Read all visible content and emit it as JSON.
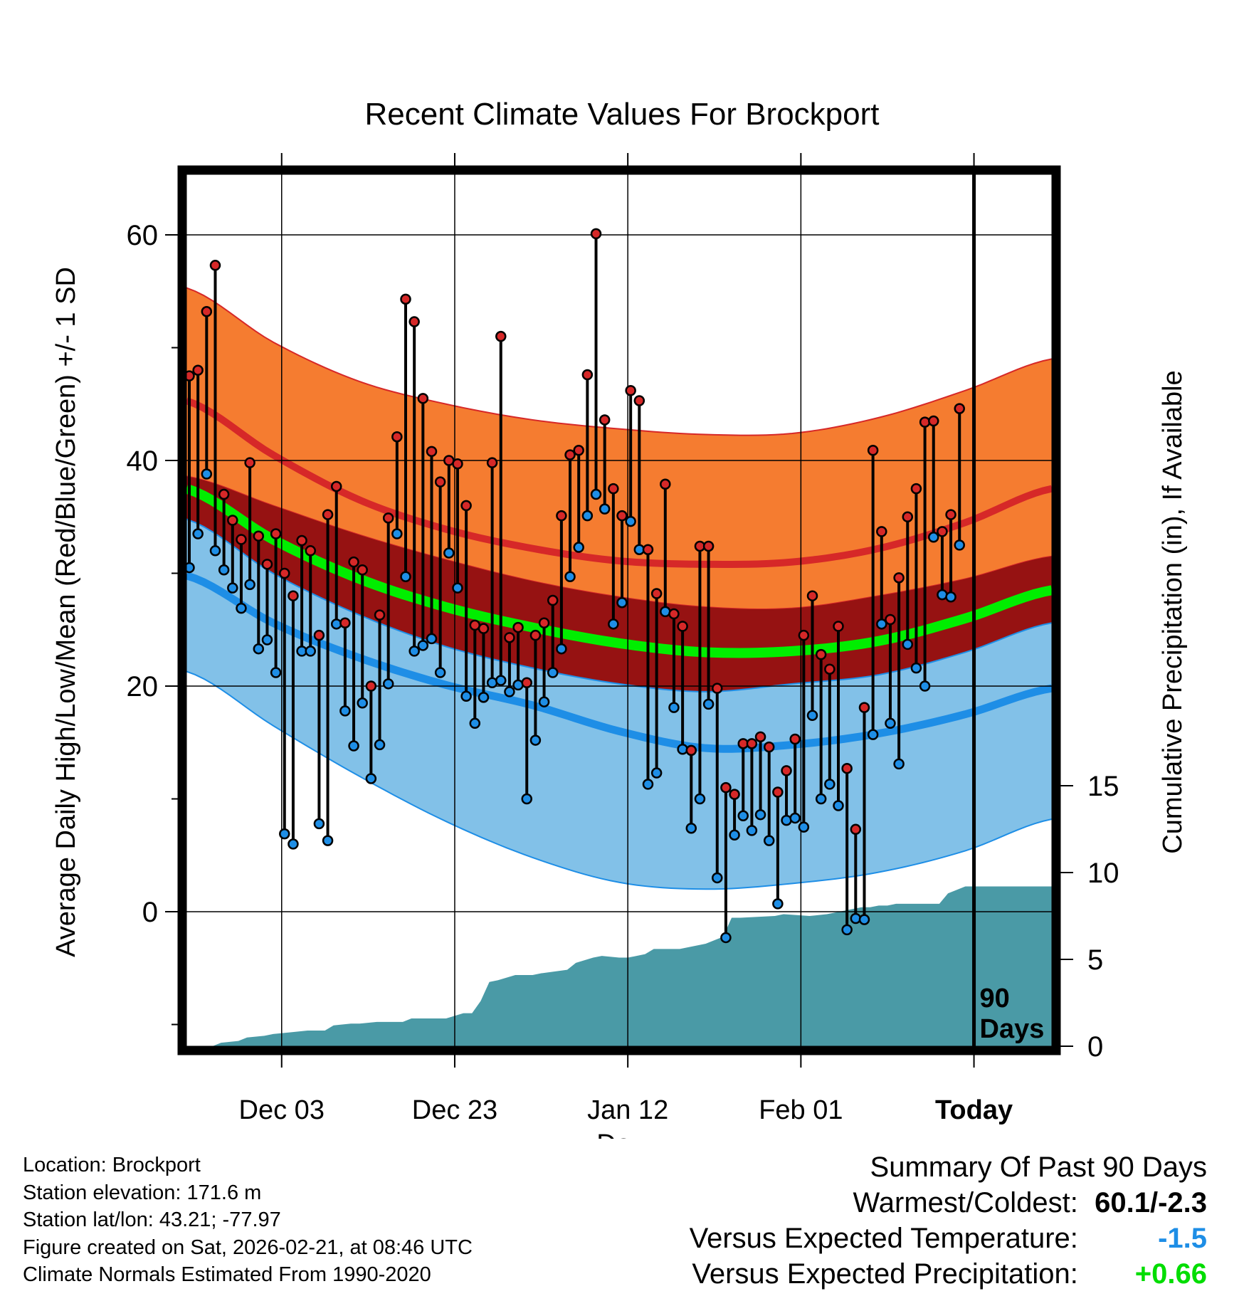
{
  "title": "Recent Climate Values For Brockport",
  "chart_data": {
    "type": "line",
    "title": "Recent Climate Values For Brockport",
    "xlabel": "Day",
    "ylabel": "Average Daily High/Low/Mean (Red/Blue/Green) +/- 1 SD",
    "y2label": "Cumulative Precipitation (in), If Available",
    "ylim": [
      -12,
      66
    ],
    "y2lim": [
      0,
      27
    ],
    "y_ticks": [
      0,
      20,
      40,
      60
    ],
    "y2_ticks": [
      0,
      5,
      10,
      15
    ],
    "x_ticks": [
      {
        "day": 11,
        "label": "Dec 03"
      },
      {
        "day": 31,
        "label": "Dec 23"
      },
      {
        "day": 51,
        "label": "Jan 12"
      },
      {
        "day": 71,
        "label": "Feb 01"
      },
      {
        "day": 91,
        "label": "Today"
      }
    ],
    "xlim": [
      0,
      100
    ],
    "today_day": 91,
    "period_label": "90 Days",
    "colors": {
      "high_band": "#f57c30",
      "high_mean": "#d62828",
      "mean_band": "#961212",
      "mean_line": "#00ee00",
      "low_band": "#82c1e8",
      "low_mean": "#1e8ee6",
      "precip": "#4a9aa6",
      "high_dot": "#d62828",
      "low_dot": "#1e8ee6"
    },
    "normals_days": [
      0,
      10,
      20,
      30,
      40,
      50,
      60,
      70,
      80,
      90,
      100
    ],
    "normal_high_upper": [
      55.3,
      50.5,
      47.0,
      45.0,
      43.6,
      42.8,
      42.3,
      42.4,
      43.8,
      46.2,
      49.0
    ],
    "normal_high": [
      45.3,
      40.5,
      36.5,
      33.9,
      32.2,
      31.1,
      30.8,
      31.0,
      32.2,
      34.5,
      37.5
    ],
    "normal_mean_upper": [
      38.6,
      36.0,
      33.4,
      31.2,
      29.3,
      27.9,
      27.0,
      26.9,
      28.0,
      29.5,
      31.5
    ],
    "normal_mean": [
      37.5,
      33.0,
      29.5,
      27.0,
      25.2,
      23.8,
      23.0,
      23.1,
      24.0,
      26.0,
      28.5
    ],
    "normal_mean_lower": [
      34.8,
      30.0,
      26.3,
      23.5,
      21.6,
      20.2,
      19.5,
      20.2,
      21.0,
      23.0,
      25.6
    ],
    "normal_low": [
      29.8,
      25.6,
      22.5,
      20.1,
      18.3,
      16.0,
      14.5,
      14.8,
      15.8,
      17.5,
      19.8
    ],
    "normal_low_lower": [
      21.3,
      16.5,
      12.0,
      8.0,
      4.8,
      2.6,
      2.0,
      2.5,
      3.5,
      5.4,
      8.2
    ],
    "observed": {
      "start_day": 0,
      "high": [
        47.5,
        48.0,
        53.2,
        57.3,
        37.0,
        34.7,
        33.0,
        39.8,
        33.3,
        30.8,
        33.5,
        30.0,
        28.0,
        32.9,
        32.0,
        24.5,
        35.2,
        37.7,
        25.6,
        31.0,
        30.3,
        20.0,
        26.3,
        34.9,
        42.1,
        54.3,
        52.3,
        45.5,
        40.8,
        38.1,
        40.0,
        39.7,
        36.0,
        25.4,
        25.1,
        39.8,
        51.0,
        24.3,
        25.2,
        20.3,
        24.5,
        25.6,
        27.6,
        35.1,
        40.5,
        40.9,
        47.6,
        60.1,
        43.6,
        37.5,
        35.1,
        46.2,
        45.3,
        32.1,
        28.2,
        37.9,
        26.4,
        25.3,
        14.3,
        32.4,
        32.4,
        19.8,
        11.0,
        10.4,
        14.9,
        14.9,
        15.5,
        14.6,
        10.6,
        12.5,
        15.3,
        24.5,
        28.0,
        22.8,
        21.5,
        25.3,
        12.7,
        7.3,
        18.1,
        40.9,
        33.7,
        25.9,
        29.6,
        35.0,
        37.5,
        43.4,
        43.5,
        33.7,
        35.2,
        44.6
      ],
      "low": [
        30.5,
        33.5,
        38.8,
        32.0,
        30.3,
        28.7,
        26.9,
        29.0,
        23.3,
        24.1,
        21.2,
        6.9,
        6.0,
        23.1,
        23.1,
        7.8,
        6.3,
        25.5,
        17.8,
        14.7,
        18.5,
        11.8,
        14.8,
        20.2,
        33.5,
        29.7,
        23.1,
        23.6,
        24.2,
        21.2,
        31.8,
        28.7,
        19.1,
        16.7,
        19.0,
        20.3,
        20.5,
        19.5,
        20.1,
        10.0,
        15.2,
        18.6,
        21.2,
        23.3,
        29.7,
        32.3,
        35.1,
        37.0,
        35.7,
        25.5,
        27.4,
        34.6,
        32.1,
        11.3,
        12.3,
        26.6,
        18.1,
        14.4,
        7.4,
        10.0,
        18.4,
        3.0,
        -2.3,
        6.8,
        8.5,
        7.2,
        8.6,
        6.3,
        0.7,
        8.1,
        8.3,
        7.5,
        17.4,
        10.0,
        11.3,
        9.4,
        -1.6,
        -0.6,
        -0.7,
        15.7,
        25.5,
        16.7,
        13.1,
        23.7,
        21.6,
        20.0,
        33.2,
        28.1,
        27.9,
        32.5
      ]
    },
    "precip_cumulative": {
      "days": [
        0,
        3,
        4,
        6,
        7,
        9,
        10,
        12,
        14,
        16,
        17,
        19,
        20,
        22,
        24,
        25,
        26,
        29,
        30,
        32,
        33,
        34,
        35,
        36,
        38,
        40,
        41,
        44,
        45,
        47,
        48,
        50,
        51,
        53,
        54,
        56,
        57,
        60,
        62,
        63,
        64,
        68,
        69,
        72,
        74,
        76,
        78,
        79,
        80,
        81,
        82,
        87,
        88,
        89,
        90,
        100
      ],
      "values": [
        0,
        0,
        0.2,
        0.3,
        0.5,
        0.6,
        0.7,
        0.8,
        0.9,
        0.9,
        1.2,
        1.3,
        1.3,
        1.4,
        1.4,
        1.4,
        1.6,
        1.6,
        1.6,
        1.9,
        1.9,
        2.6,
        3.7,
        3.8,
        4.1,
        4.1,
        4.2,
        4.4,
        4.8,
        5.1,
        5.2,
        5.1,
        5.1,
        5.3,
        5.6,
        5.6,
        5.6,
        5.9,
        6.3,
        7.4,
        7.4,
        7.5,
        7.6,
        7.5,
        7.6,
        7.8,
        8.0,
        8.0,
        8.1,
        8.1,
        8.2,
        8.2,
        8.8,
        9.0,
        9.2,
        9.2
      ]
    }
  },
  "footer_left": {
    "location": "Location: Brockport",
    "elevation": "Station elevation: 171.6 m",
    "latlon": "Station lat/lon: 43.21; -77.97",
    "created": "Figure created on Sat, 2026-02-21, at 08:46 UTC",
    "normals": "Climate Normals Estimated From 1990-2020"
  },
  "summary": {
    "heading": "Summary Of Past 90 Days",
    "warm_cold_label": "Warmest/Coldest:",
    "warm_cold_value": "60.1/-2.3",
    "temp_label": "Versus Expected Temperature:",
    "temp_value": "-1.5",
    "temp_color": "#1e8ee6",
    "precip_label": "Versus Expected Precipitation:",
    "precip_value": "+0.66",
    "precip_color": "#00dd00"
  }
}
